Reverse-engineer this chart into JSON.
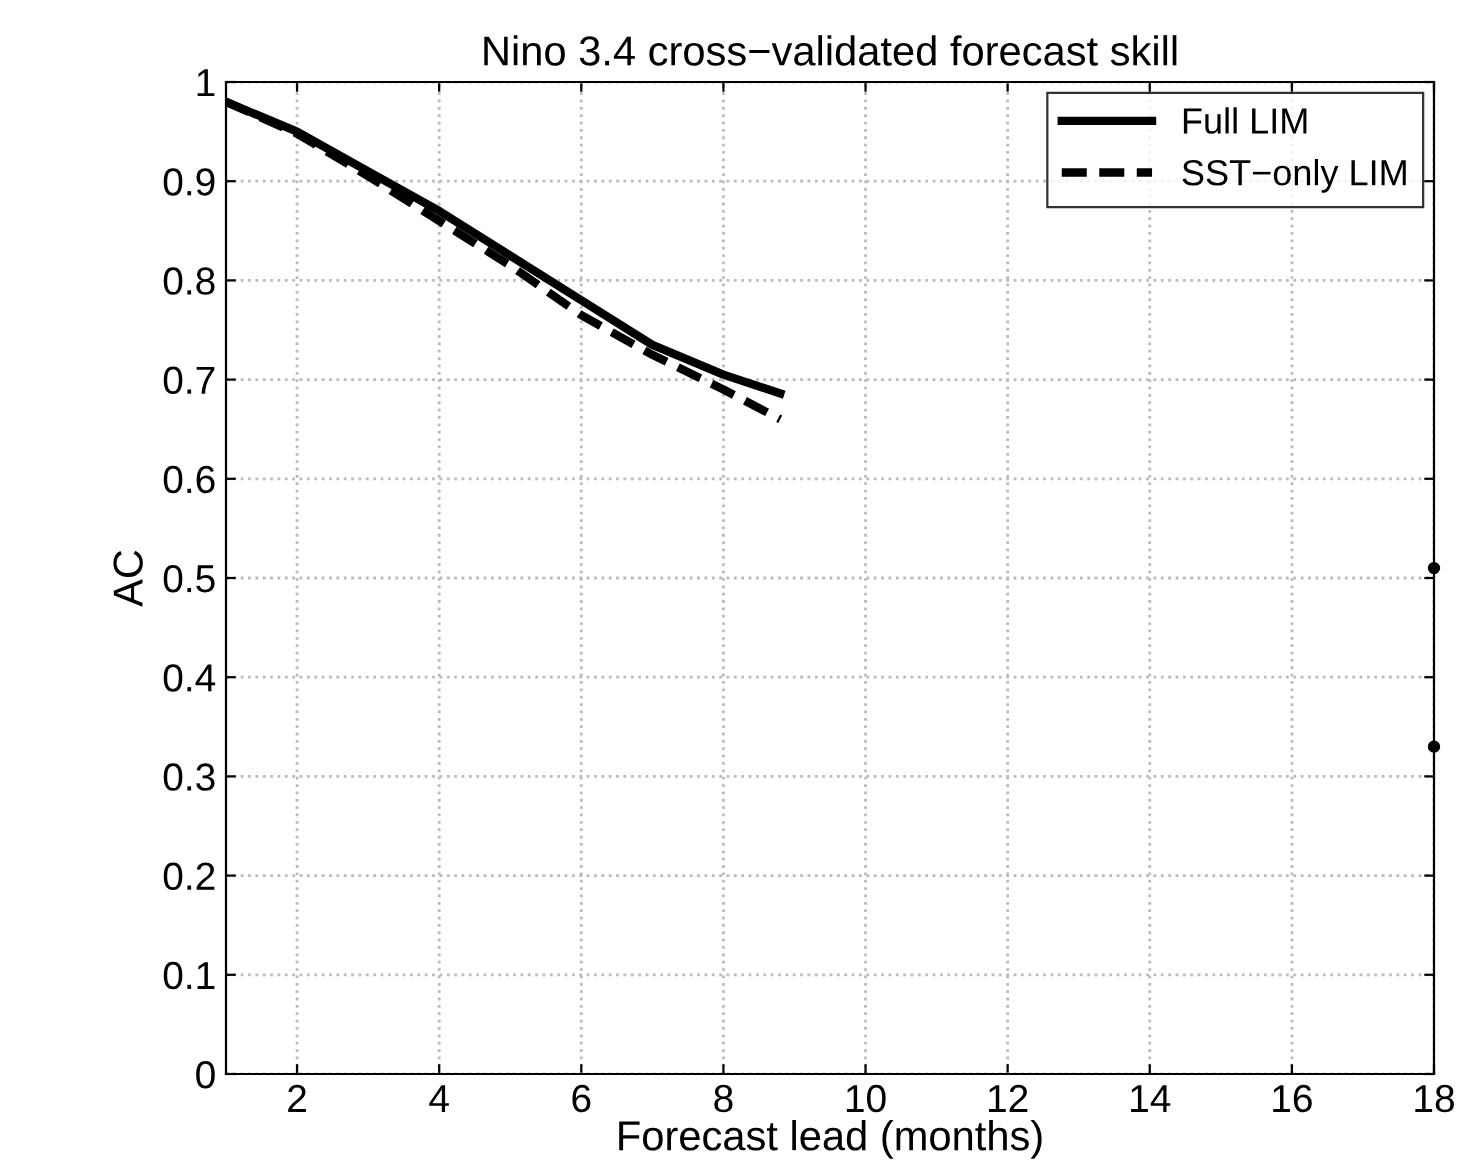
{
  "chart_data": {
    "type": "line",
    "title": "Nino 3.4 cross−validated forecast skill",
    "xlabel": "Forecast lead (months)",
    "ylabel": "AC",
    "series": [
      {
        "name": "Full LIM",
        "color": "#000000",
        "line_style": "solid",
        "x": [
          1,
          2,
          3,
          4,
          5,
          6,
          7,
          8,
          8.8
        ],
        "values": [
          0.98,
          0.95,
          0.91,
          0.87,
          0.825,
          0.78,
          0.735,
          0.705,
          0.686
        ]
      },
      {
        "name": "SST−only LIM",
        "color": "#000000",
        "line_style": "dashed",
        "x": [
          1,
          2,
          3,
          4,
          5,
          6,
          7,
          8,
          8.8
        ],
        "values": [
          0.98,
          0.948,
          0.905,
          0.86,
          0.815,
          0.765,
          0.725,
          0.69,
          0.66
        ]
      },
      {
        "type": "scatter",
        "color": "#000000",
        "marker": "circle",
        "x": [
          18,
          18
        ],
        "values": [
          0.51,
          0.33
        ]
      }
    ],
    "xlim": [
      1,
      18
    ],
    "xticks": [
      2,
      4,
      6,
      8,
      10,
      12,
      14,
      16,
      18
    ],
    "ylim": [
      0,
      1
    ],
    "yticks": [
      0,
      0.1,
      0.2,
      0.3,
      0.4,
      0.5,
      0.6,
      0.7,
      0.8,
      0.9,
      1
    ],
    "grid": true,
    "legend": "top right"
  }
}
